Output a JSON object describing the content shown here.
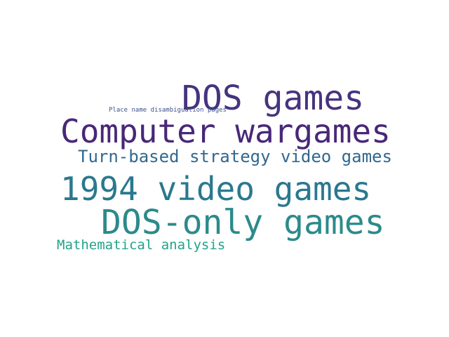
{
  "words": [
    {
      "id": "w-dos-games",
      "text": "DOS games",
      "color": "#46337e"
    },
    {
      "id": "w-placename",
      "text": "Place name disambiguation pages",
      "color": "#3b528b"
    },
    {
      "id": "w-computer",
      "text": "Computer wargames",
      "color": "#482878"
    },
    {
      "id": "w-turnbased",
      "text": "Turn-based strategy video games",
      "color": "#31688e"
    },
    {
      "id": "w-1994",
      "text": "1994 video games",
      "color": "#2a788e"
    },
    {
      "id": "w-dosonly",
      "text": "DOS-only games",
      "color": "#2c8a8b"
    },
    {
      "id": "w-math",
      "text": "Mathematical analysis",
      "color": "#21a38a"
    }
  ]
}
